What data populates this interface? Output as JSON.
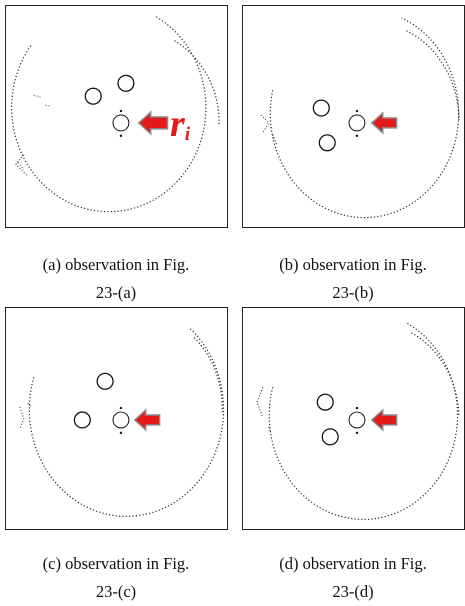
{
  "figures": [
    {
      "id": "a",
      "caption_line1": "(a) observation in Fig.",
      "caption_line2": "23-(a)",
      "annotation_main": "r",
      "annotation_sub": "i"
    },
    {
      "id": "b",
      "caption_line1": "(b) observation in Fig.",
      "caption_line2": "23-(b)"
    },
    {
      "id": "c",
      "caption_line1": "(c) observation in Fig.",
      "caption_line2": "23-(c)"
    },
    {
      "id": "d",
      "caption_line1": "(d) observation in Fig.",
      "caption_line2": "23-(d)"
    }
  ],
  "colors": {
    "arrow_fill": "#e41a1a",
    "arrow_stroke": "#8a8a8a",
    "points": "#222222"
  },
  "icons": [
    "arrow-left-icon"
  ]
}
